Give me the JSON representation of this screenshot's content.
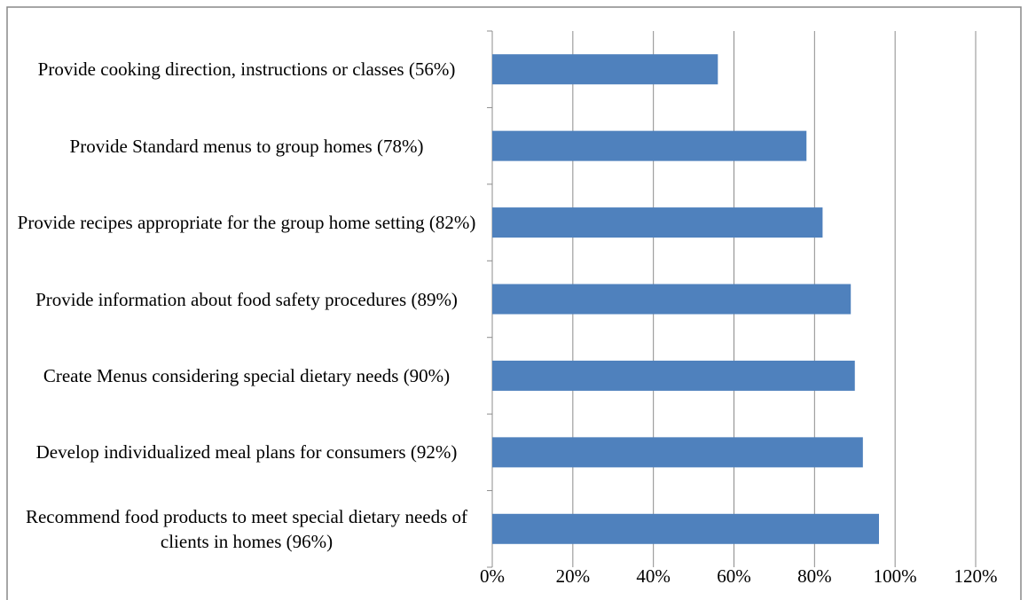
{
  "chart_data": {
    "type": "bar",
    "orientation": "horizontal",
    "categories": [
      "Provide cooking direction, instructions or classes (56%)",
      "Provide Standard menus to group homes (78%)",
      "Provide recipes appropriate for the group home setting (82%)",
      "Provide information about food safety procedures (89%)",
      "Create Menus considering special dietary needs (90%)",
      "Develop individualized meal plans for consumers (92%)",
      "Recommend food products to meet special dietary needs of clients in homes (96%)"
    ],
    "values": [
      56,
      78,
      82,
      89,
      90,
      92,
      96
    ],
    "color": "#4f81bd",
    "xlim": [
      0,
      120
    ],
    "xticks": [
      {
        "value": 0,
        "label": "0%"
      },
      {
        "value": 20,
        "label": "20%"
      },
      {
        "value": 40,
        "label": "40%"
      },
      {
        "value": 60,
        "label": "60%"
      },
      {
        "value": 80,
        "label": "80%"
      },
      {
        "value": 100,
        "label": "100%"
      },
      {
        "value": 120,
        "label": "120%"
      }
    ],
    "grid": true
  }
}
